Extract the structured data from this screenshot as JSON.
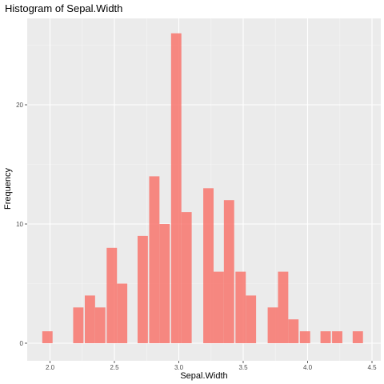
{
  "chart_data": {
    "type": "bar",
    "title": "Histogram of Sepal.Width",
    "xlabel": "Sepal.Width",
    "ylabel": "Frequency",
    "xlim": [
      1.9,
      4.5
    ],
    "ylim": [
      0,
      26
    ],
    "x_ticks": [
      "2.0",
      "2.5",
      "3.0",
      "3.5",
      "4.0",
      "4.5"
    ],
    "y_ticks": [
      "0",
      "10",
      "20"
    ],
    "bin_width": 0.08,
    "bins": [
      {
        "center": 1.98,
        "count": 1
      },
      {
        "center": 2.22,
        "count": 3
      },
      {
        "center": 2.31,
        "count": 4
      },
      {
        "center": 2.39,
        "count": 3
      },
      {
        "center": 2.48,
        "count": 8
      },
      {
        "center": 2.56,
        "count": 5
      },
      {
        "center": 2.72,
        "count": 9
      },
      {
        "center": 2.81,
        "count": 14
      },
      {
        "center": 2.89,
        "count": 10
      },
      {
        "center": 2.98,
        "count": 26
      },
      {
        "center": 3.06,
        "count": 11
      },
      {
        "center": 3.23,
        "count": 13
      },
      {
        "center": 3.31,
        "count": 6
      },
      {
        "center": 3.39,
        "count": 12
      },
      {
        "center": 3.48,
        "count": 6
      },
      {
        "center": 3.56,
        "count": 4
      },
      {
        "center": 3.73,
        "count": 3
      },
      {
        "center": 3.81,
        "count": 6
      },
      {
        "center": 3.89,
        "count": 2
      },
      {
        "center": 3.98,
        "count": 1
      },
      {
        "center": 4.14,
        "count": 1
      },
      {
        "center": 4.23,
        "count": 1
      },
      {
        "center": 4.39,
        "count": 1
      }
    ],
    "grid": true,
    "legend": "none",
    "colors": {
      "bar_fill": "#f8766d",
      "panel_background": "#ebebeb",
      "grid_major": "#ffffff",
      "grid_minor": "#f5f5f5"
    }
  }
}
